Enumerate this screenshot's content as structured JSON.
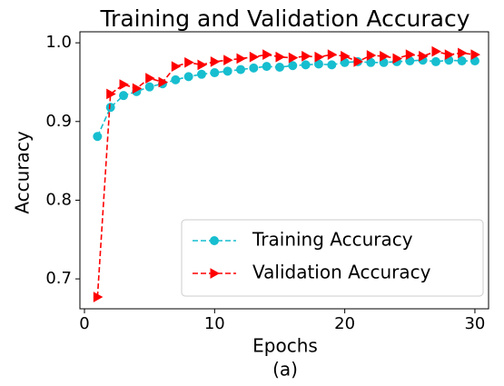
{
  "chart_data": {
    "type": "line",
    "title": "Training and Validation Accuracy",
    "xlabel": "Epochs",
    "ylabel": "Accuracy",
    "caption": "(a)",
    "x": [
      1,
      2,
      3,
      4,
      5,
      6,
      7,
      8,
      9,
      10,
      11,
      12,
      13,
      14,
      15,
      16,
      17,
      18,
      19,
      20,
      21,
      22,
      23,
      24,
      25,
      26,
      27,
      28,
      29,
      30
    ],
    "series": [
      {
        "name": "Training Accuracy",
        "color": "#17becf",
        "marker": "circle",
        "values": [
          0.881,
          0.918,
          0.933,
          0.938,
          0.944,
          0.948,
          0.953,
          0.957,
          0.96,
          0.962,
          0.964,
          0.966,
          0.968,
          0.97,
          0.969,
          0.971,
          0.972,
          0.973,
          0.972,
          0.975,
          0.976,
          0.975,
          0.975,
          0.976,
          0.977,
          0.978,
          0.976,
          0.978,
          0.977,
          0.977
        ]
      },
      {
        "name": "Validation Accuracy",
        "color": "#ff0000",
        "marker": "triangle-right",
        "values": [
          0.677,
          0.935,
          0.947,
          0.942,
          0.955,
          0.95,
          0.97,
          0.975,
          0.972,
          0.976,
          0.978,
          0.98,
          0.982,
          0.985,
          0.982,
          0.981,
          0.983,
          0.982,
          0.985,
          0.983,
          0.976,
          0.984,
          0.983,
          0.98,
          0.985,
          0.983,
          0.989,
          0.985,
          0.987,
          0.985
        ]
      }
    ],
    "xlim": [
      -0.35,
      31.05
    ],
    "ylim": [
      0.662,
      1.014
    ],
    "xticks": [
      0,
      10,
      20,
      30
    ],
    "yticks": [
      0.7,
      0.8,
      0.9,
      {
        "value": 1,
        "label": "1.0"
      }
    ],
    "legend": "lower right",
    "grid": false
  }
}
